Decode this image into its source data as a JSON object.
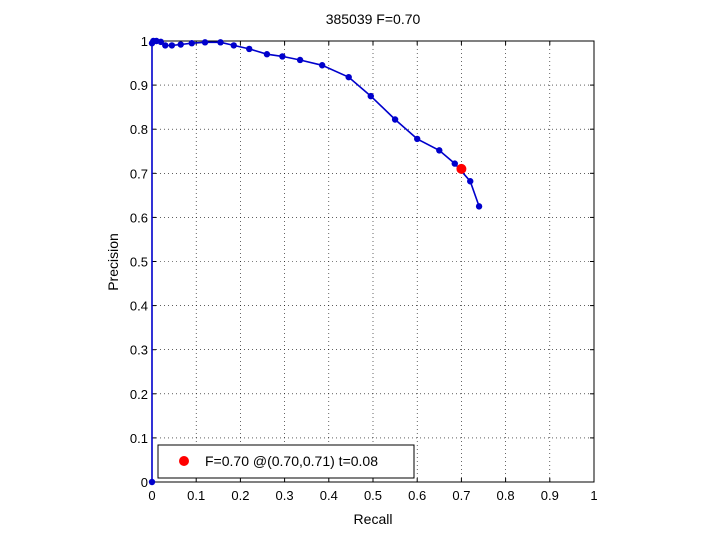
{
  "chart_data": {
    "type": "line",
    "title": "385039 F=0.70",
    "xlabel": "Recall",
    "ylabel": "Precision",
    "xlim": [
      0,
      1
    ],
    "ylim": [
      0,
      1
    ],
    "grid": true,
    "x_ticks": [
      "0",
      "0.1",
      "0.2",
      "0.3",
      "0.4",
      "0.5",
      "0.6",
      "0.7",
      "0.8",
      "0.9",
      "1"
    ],
    "y_ticks": [
      "0",
      "0.1",
      "0.2",
      "0.3",
      "0.4",
      "0.5",
      "0.6",
      "0.7",
      "0.8",
      "0.9",
      "1"
    ],
    "series": [
      {
        "color": "#0000cc",
        "x": [
          0.0,
          0.0,
          0.003,
          0.01,
          0.02,
          0.03,
          0.045,
          0.065,
          0.09,
          0.12,
          0.155,
          0.185,
          0.22,
          0.26,
          0.295,
          0.335,
          0.385,
          0.445,
          0.495,
          0.55,
          0.6,
          0.65,
          0.685,
          0.72,
          0.74
        ],
        "y": [
          0.0,
          0.995,
          1.0,
          1.0,
          0.998,
          0.99,
          0.99,
          0.992,
          0.995,
          0.997,
          0.997,
          0.99,
          0.982,
          0.97,
          0.965,
          0.957,
          0.945,
          0.918,
          0.875,
          0.822,
          0.778,
          0.752,
          0.722,
          0.682,
          0.625
        ]
      }
    ],
    "highlight": {
      "x": 0.7,
      "y": 0.71,
      "color": "#ff0000"
    },
    "legend": {
      "position": "bottom-left",
      "text": "F=0.70 @(0.70,0.71) t=0.08"
    }
  }
}
